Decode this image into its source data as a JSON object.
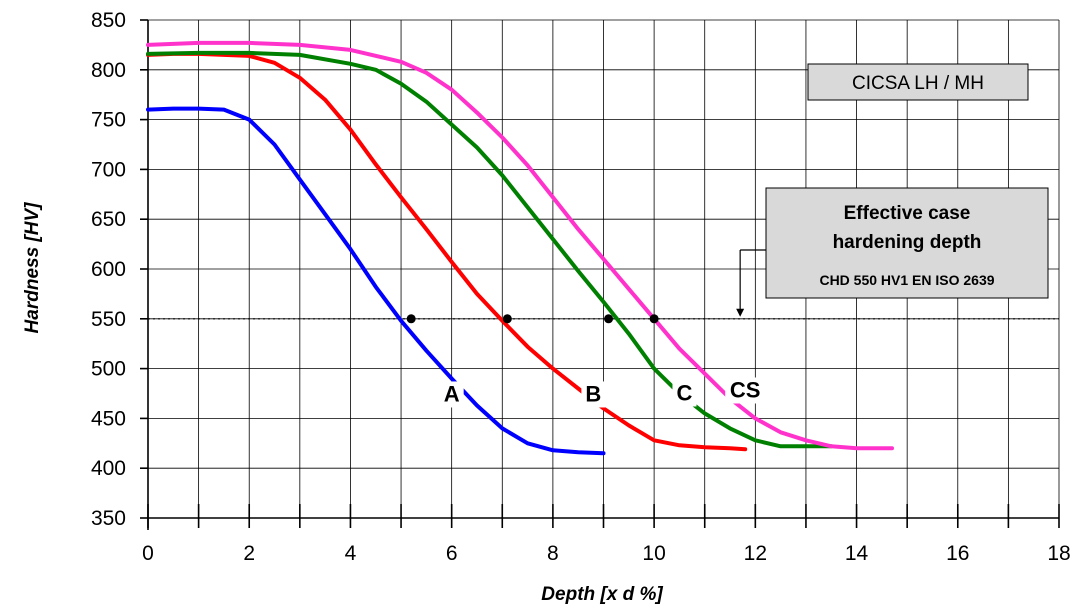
{
  "chart_data": {
    "type": "line",
    "xlabel": "Depth  [x d %]",
    "ylabel": "Hardness [HV]",
    "xlim": [
      0,
      18
    ],
    "ylim": [
      350,
      850
    ],
    "xticks": [
      0,
      2,
      4,
      6,
      8,
      10,
      12,
      14,
      16,
      18
    ],
    "yticks": [
      350,
      400,
      450,
      500,
      550,
      600,
      650,
      700,
      750,
      800,
      850
    ],
    "grid": true,
    "series": [
      {
        "name": "A",
        "color": "#0000ff",
        "x": [
          0,
          0.5,
          1.0,
          1.5,
          2.0,
          2.5,
          3.0,
          3.5,
          4.0,
          4.5,
          5.0,
          5.5,
          6.0,
          6.5,
          7.0,
          7.5,
          8.0,
          8.5,
          9.0
        ],
        "y": [
          760,
          761,
          761,
          760,
          750,
          725,
          690,
          655,
          620,
          582,
          548,
          518,
          490,
          463,
          440,
          425,
          418,
          416,
          415
        ]
      },
      {
        "name": "B",
        "color": "#ff0000",
        "x": [
          0,
          0.5,
          1.0,
          1.5,
          2.0,
          2.5,
          3.0,
          3.5,
          4.0,
          4.5,
          5.0,
          5.5,
          6.0,
          6.5,
          7.0,
          7.5,
          8.0,
          8.5,
          9.0,
          9.5,
          10.0,
          10.5,
          11.0,
          11.5,
          11.8
        ],
        "y": [
          815,
          816,
          816,
          815,
          814,
          807,
          792,
          770,
          740,
          705,
          672,
          640,
          607,
          575,
          548,
          522,
          500,
          480,
          460,
          443,
          428,
          423,
          421,
          420,
          419
        ]
      },
      {
        "name": "C",
        "color": "#008000",
        "x": [
          0,
          1,
          2,
          3,
          4,
          4.5,
          5,
          5.5,
          6,
          6.5,
          7,
          7.5,
          8,
          8.5,
          9,
          9.5,
          10,
          10.5,
          11,
          11.5,
          12,
          12.5,
          13,
          13.5
        ],
        "y": [
          816,
          817,
          817,
          815,
          806,
          800,
          786,
          768,
          745,
          722,
          694,
          662,
          630,
          598,
          567,
          535,
          500,
          475,
          455,
          440,
          428,
          422,
          422,
          422
        ]
      },
      {
        "name": "CS",
        "color": "#ff33cc",
        "x": [
          0,
          1,
          2,
          3,
          4,
          5,
          5.5,
          6,
          6.5,
          7,
          7.5,
          8,
          8.5,
          9,
          9.5,
          10,
          10.5,
          11,
          11.5,
          12,
          12.5,
          13,
          13.5,
          14,
          14.7
        ],
        "y": [
          825,
          827,
          827,
          825,
          820,
          808,
          797,
          780,
          757,
          732,
          704,
          672,
          640,
          610,
          580,
          550,
          520,
          495,
          470,
          450,
          436,
          428,
          422,
          420,
          420
        ]
      }
    ],
    "markers": [
      {
        "x": 5.2,
        "y": 550
      },
      {
        "x": 7.1,
        "y": 550
      },
      {
        "x": 9.1,
        "y": 550
      },
      {
        "x": 10.0,
        "y": 550
      }
    ],
    "reference_line": {
      "y": 550,
      "style": "dotted"
    },
    "arrow_x": 11.7,
    "annotations": {
      "grade_box": "CICSA LH / MH",
      "chd_box": {
        "line1": "Effective case",
        "line2": "hardening depth",
        "line3": "CHD 550 HV1 EN ISO 2639"
      }
    }
  }
}
